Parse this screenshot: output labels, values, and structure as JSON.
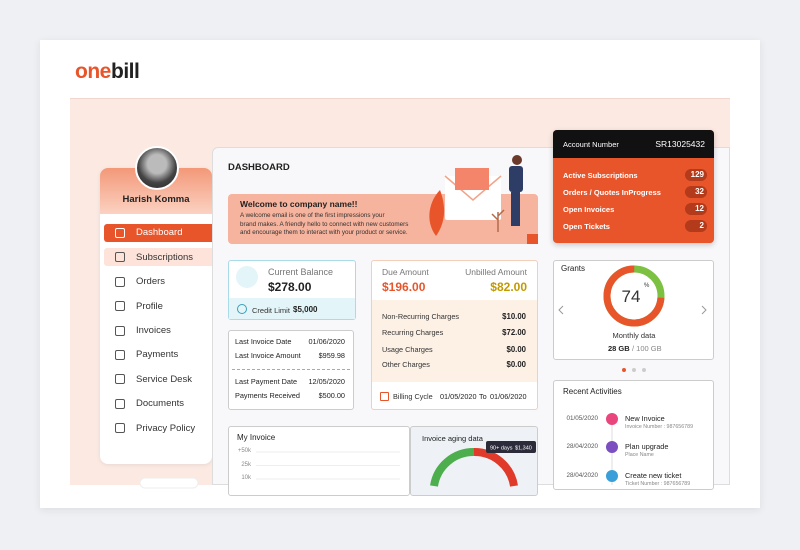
{
  "brand": [
    "one",
    "bill"
  ],
  "user": {
    "name": "Harish Komma"
  },
  "menu": [
    "Dashboard",
    "Subscriptions",
    "Orders",
    "Profile",
    "Invoices",
    "Payments",
    "Service Desk",
    "Documents",
    "Privacy Policy"
  ],
  "page_title": "DASHBOARD",
  "account": {
    "label": "Account Number",
    "number": "SR13025432",
    "rows": [
      {
        "label": "Active Subscriptions",
        "count": 129
      },
      {
        "label": "Orders / Quotes InProgress",
        "count": 32
      },
      {
        "label": "Open Invoices",
        "count": 12
      },
      {
        "label": "Open Tickets",
        "count": 2
      }
    ]
  },
  "welcome": {
    "title": "Welcome to company name!!",
    "lines": [
      "A welcome email is one of the first impressions your",
      "brand makes. A friendly hello to connect with new customers",
      "and encourage them to interact with your product or service."
    ]
  },
  "balance": {
    "label": "Current Balance",
    "amount": "$278.00",
    "credit_label": "Credit Limit",
    "credit": "$5,000"
  },
  "invoice_dates": [
    [
      "Last Invoice Date",
      "01/06/2020"
    ],
    [
      "Last Invoice Amount",
      "$959.98"
    ],
    [
      "Last Payment Date",
      "12/05/2020"
    ],
    [
      "Payments Received",
      "$500.00"
    ]
  ],
  "due": {
    "label": "Due Amount",
    "amount": "$196.00",
    "unbilled_label": "Unbilled Amount",
    "unbilled": "$82.00",
    "charges": [
      [
        "Non-Recurring Charges",
        "$10.00"
      ],
      [
        "Recurring Charges",
        "$72.00"
      ],
      [
        "Usage Charges",
        "$0.00"
      ],
      [
        "Other Charges",
        "$0.00"
      ]
    ],
    "billing_label": "Billing Cycle",
    "from": "01/05/2020",
    "to_label": "To",
    "to": "01/06/2020"
  },
  "grants": {
    "title": "Grants",
    "percent": 74,
    "unit": "%",
    "label": "Monthly data",
    "used": "28 GB",
    "total": "/ 100 GB"
  },
  "activities": {
    "title": "Recent Activities",
    "items": [
      {
        "date": "01/05/2020",
        "title": "New Invoice",
        "sub": "Invoice Number : 987656789"
      },
      {
        "date": "28/04/2020",
        "title": "Plan upgrade",
        "sub": "Place Name"
      },
      {
        "date": "28/04/2020",
        "title": "Create new ticket",
        "sub": "Ticket Number : 987656789"
      }
    ]
  },
  "my_invoice": {
    "title": "My Invoice",
    "ylabels": [
      "+50k",
      "25k",
      "10k"
    ]
  },
  "aging": {
    "title": "Invoice aging data",
    "tooltip": [
      "90+ days",
      "$1,340"
    ]
  }
}
